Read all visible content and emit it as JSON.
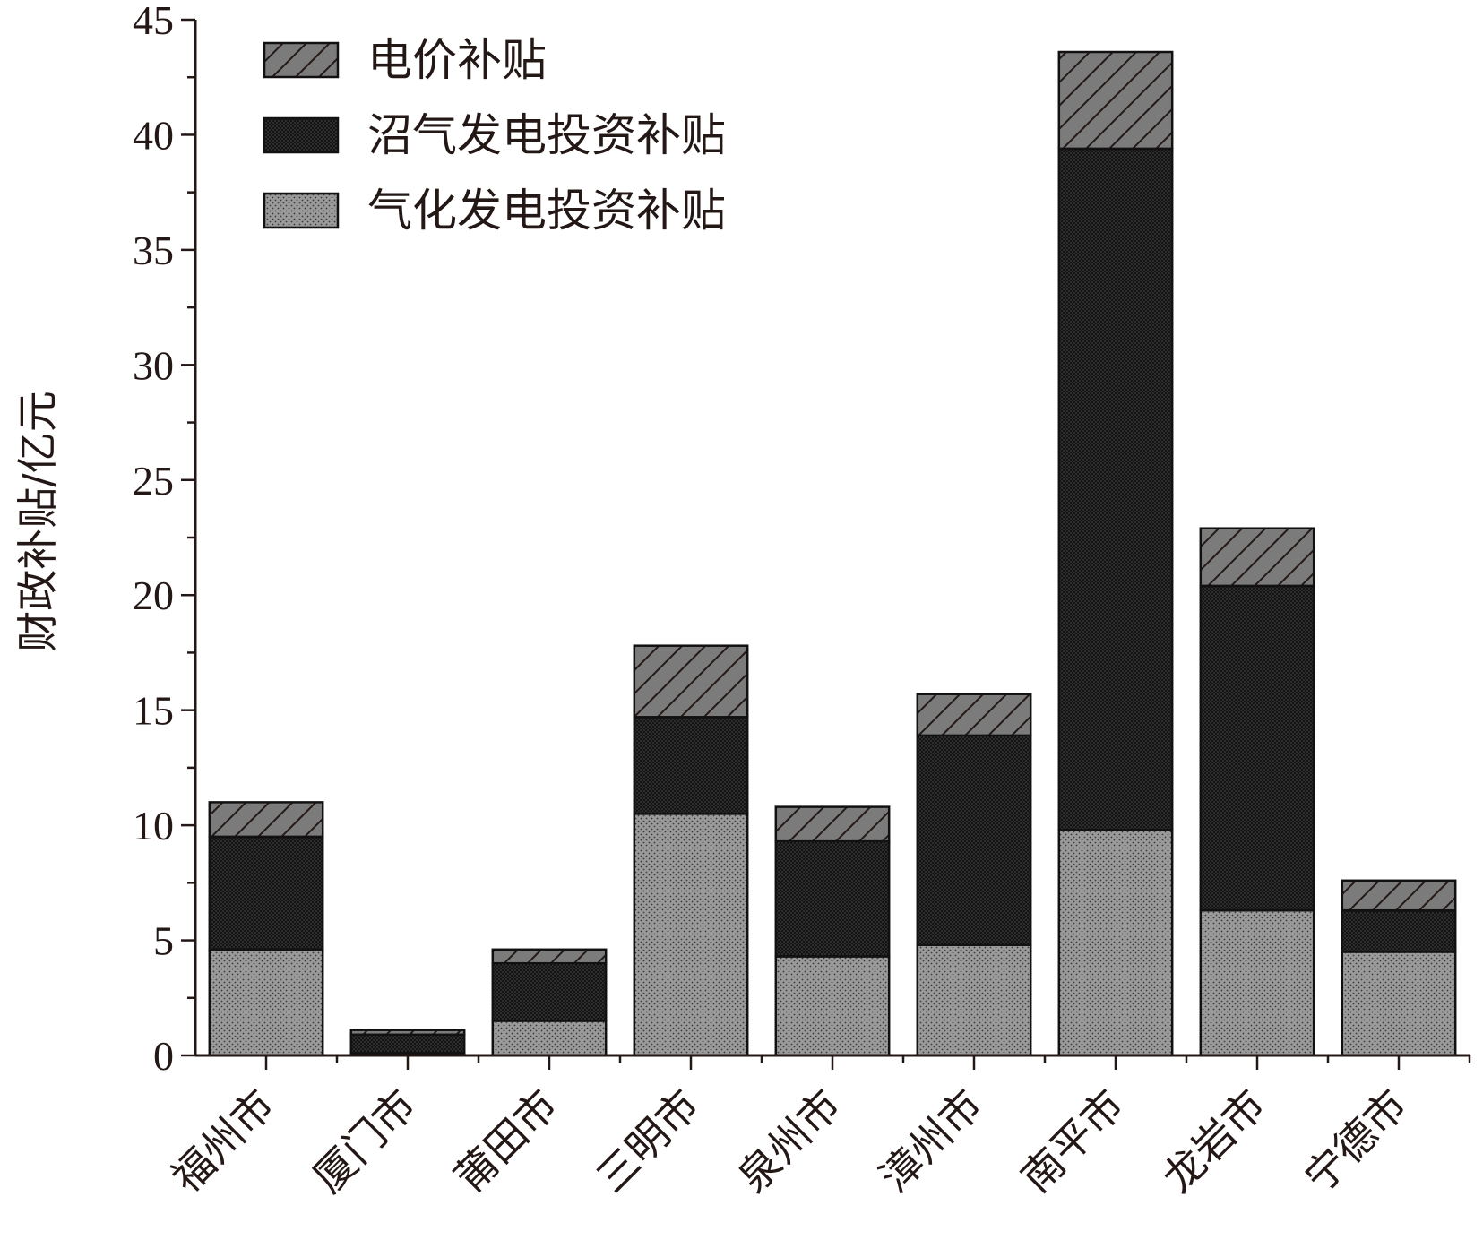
{
  "chart_data": {
    "type": "bar",
    "stacked": true,
    "categories": [
      "福州市",
      "厦门市",
      "莆田市",
      "三明市",
      "泉州市",
      "漳州市",
      "南平市",
      "龙岩市",
      "宁德市"
    ],
    "series": [
      {
        "name": "气化发电投资补贴",
        "values": [
          4.6,
          0.1,
          1.5,
          10.5,
          4.3,
          4.8,
          9.8,
          6.3,
          4.5
        ],
        "pattern": "fine-dots",
        "color": "#8a8a8a"
      },
      {
        "name": "沼气发电投资补贴",
        "values": [
          4.9,
          0.8,
          2.5,
          4.2,
          5.0,
          9.1,
          29.6,
          14.1,
          1.8
        ],
        "pattern": "dense-dots",
        "color": "#1a1a1a"
      },
      {
        "name": "电价补贴",
        "values": [
          1.5,
          0.2,
          0.6,
          3.1,
          1.5,
          1.8,
          4.2,
          2.5,
          1.3
        ],
        "pattern": "diagonal-hatch",
        "color": "#7a7a7a"
      }
    ],
    "legend_order": [
      "电价补贴",
      "沼气发电投资补贴",
      "气化发电投资补贴"
    ],
    "xlabel": "",
    "ylabel": "财政补贴/亿元",
    "ylim": [
      0,
      45
    ],
    "yticks": [
      0,
      5,
      10,
      15,
      20,
      25,
      30,
      35,
      40,
      45
    ],
    "grid": false,
    "legend_position": "top-left"
  }
}
